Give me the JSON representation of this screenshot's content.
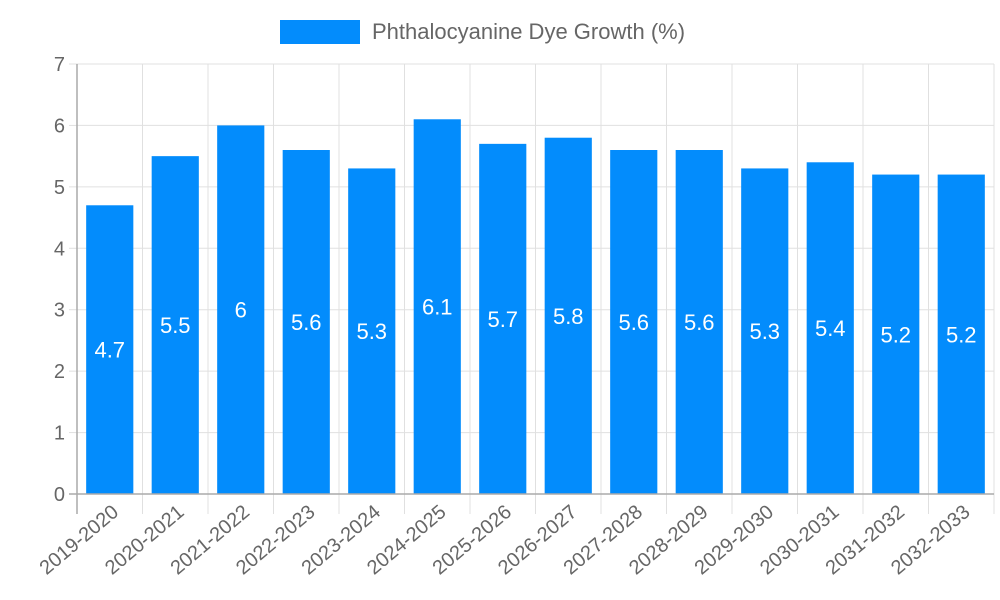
{
  "legend": {
    "label": "Phthalocyanine Dye Growth (%)",
    "color": "#038cfc"
  },
  "colors": {
    "bar": "#038cfc",
    "grid": "#e0e0e0",
    "axis": "#aaaaaa",
    "text": "#666666",
    "value_label": "#ffffff"
  },
  "chart_data": {
    "type": "bar",
    "title": "",
    "xlabel": "",
    "ylabel": "",
    "ylim": [
      0,
      7
    ],
    "yticks": [
      0,
      1,
      2,
      3,
      4,
      5,
      6,
      7
    ],
    "grid": true,
    "legend_position": "top",
    "categories": [
      "2019-2020",
      "2020-2021",
      "2021-2022",
      "2022-2023",
      "2023-2024",
      "2024-2025",
      "2025-2026",
      "2026-2027",
      "2027-2028",
      "2028-2029",
      "2029-2030",
      "2030-2031",
      "2031-2032",
      "2032-2033"
    ],
    "series": [
      {
        "name": "Phthalocyanine Dye Growth (%)",
        "values": [
          4.7,
          5.5,
          6,
          5.6,
          5.3,
          6.1,
          5.7,
          5.8,
          5.6,
          5.6,
          5.3,
          5.4,
          5.2,
          5.2
        ],
        "data_labels": [
          "4.7",
          "5.5",
          "6",
          "5.6",
          "5.3",
          "6.1",
          "5.7",
          "5.8",
          "5.6",
          "5.6",
          "5.3",
          "5.4",
          "5.2",
          "5.2"
        ]
      }
    ]
  }
}
